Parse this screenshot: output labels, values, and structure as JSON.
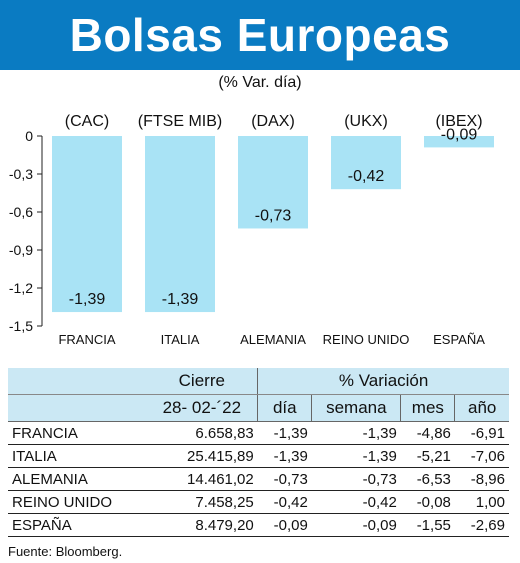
{
  "header": {
    "title": "Bolsas Europeas",
    "subtitle": "(% Var. día)"
  },
  "chart_data": {
    "type": "bar",
    "categories": [
      "FRANCIA",
      "ITALIA",
      "ALEMANIA",
      "REINO UNIDO",
      "ESPAÑA"
    ],
    "indices": [
      "(CAC)",
      "(FTSE MIB)",
      "(DAX)",
      "(UKX)",
      "(IBEX)"
    ],
    "values": [
      -1.39,
      -1.39,
      -0.73,
      -0.42,
      -0.09
    ],
    "value_labels": [
      "-1,39",
      "-1,39",
      "-0,73",
      "-0,42",
      "-0,09"
    ],
    "yticks": [
      0,
      -0.3,
      -0.6,
      -0.9,
      -1.2,
      -1.5
    ],
    "ytick_labels": [
      "0",
      "-0,3",
      "-0,6",
      "-0,9",
      "-1,2",
      "-1,5"
    ],
    "ylim": [
      -1.5,
      0
    ],
    "bar_color": "#a9e3f5",
    "grid": false
  },
  "table": {
    "header_cierre": "Cierre",
    "header_variacion": "% Variación",
    "date": "28- 02-´22",
    "col_dia": "día",
    "col_semana": "semana",
    "col_mes": "mes",
    "col_ano": "año",
    "rows": [
      {
        "country": "FRANCIA",
        "cierre": "6.658,83",
        "dia": "-1,39",
        "semana": "-1,39",
        "mes": "-4,86",
        "ano": "-6,91"
      },
      {
        "country": "ITALIA",
        "cierre": "25.415,89",
        "dia": "-1,39",
        "semana": "-1,39",
        "mes": "-5,21",
        "ano": "-7,06"
      },
      {
        "country": "ALEMANIA",
        "cierre": "14.461,02",
        "dia": "-0,73",
        "semana": "-0,73",
        "mes": "-6,53",
        "ano": "-8,96"
      },
      {
        "country": "REINO UNIDO",
        "cierre": "7.458,25",
        "dia": "-0,42",
        "semana": "-0,42",
        "mes": "-0,08",
        "ano": "1,00"
      },
      {
        "country": "ESPAÑA",
        "cierre": "8.479,20",
        "dia": "-0,09",
        "semana": "-0,09",
        "mes": "-1,55",
        "ano": "-2,69"
      }
    ]
  },
  "source": "Fuente: Bloomberg.",
  "colors": {
    "title_bg": "#0a7bc2",
    "header_bg": "#cbe8f4"
  }
}
